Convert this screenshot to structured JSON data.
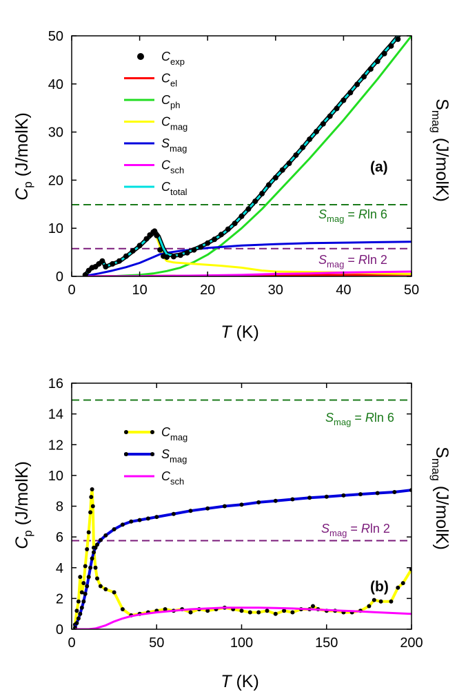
{
  "chart_data": [
    {
      "panel": "(a)",
      "type": "line",
      "xlabel": {
        "italic": "T",
        "rest": " (K)"
      },
      "ylabel_left": {
        "italic": "C",
        "sub": "p",
        "rest": " (J/molK)"
      },
      "ylabel_right": {
        "main": "S",
        "sub": "mag",
        "rest": " (J/molK)"
      },
      "xlim": [
        0,
        50
      ],
      "ylim": [
        0,
        50
      ],
      "xticks": [
        "0",
        "10",
        "20",
        "30",
        "40",
        "50"
      ],
      "yticks": [
        "0",
        "10",
        "20",
        "30",
        "40",
        "50"
      ],
      "hlines": [
        {
          "y": 14.9,
          "color": "#1a7a1a",
          "label_main": "S",
          "label_sub": "mag",
          "label_mid": " = ",
          "label_italic": "R",
          "label_tail": "ln 6"
        },
        {
          "y": 5.76,
          "color": "#7a1a7a",
          "label_main": "S",
          "label_sub": "mag",
          "label_mid": " = ",
          "label_italic": "R",
          "label_tail": "ln 2"
        }
      ],
      "legend": [
        {
          "sym": "C",
          "sub": "exp",
          "color": "#000000",
          "kind": "dot"
        },
        {
          "sym": "C",
          "sub": "el",
          "color": "#ff0000",
          "kind": "line"
        },
        {
          "sym": "C",
          "sub": "ph",
          "color": "#22dd22",
          "kind": "line"
        },
        {
          "sym": "C",
          "sub": "mag",
          "color": "#ffff00",
          "kind": "line"
        },
        {
          "sym": "S",
          "sub": "mag",
          "color": "#0000dd",
          "kind": "line"
        },
        {
          "sym": "C",
          "sub": "sch",
          "color": "#ff00ff",
          "kind": "line"
        },
        {
          "sym": "C",
          "sub": "total",
          "color": "#00e0e0",
          "kind": "line"
        }
      ],
      "series": [
        {
          "name": "C_exp",
          "style": "dots",
          "color": "#000000",
          "x": [
            2,
            2.5,
            3,
            3.5,
            4,
            4.5,
            5,
            6,
            7,
            8,
            9,
            10,
            11,
            11.5,
            12,
            12.2,
            12.5,
            13,
            13.5,
            14,
            15,
            16,
            17,
            18,
            19,
            20,
            21,
            22,
            23,
            24,
            25,
            26,
            27,
            28,
            29,
            30,
            31,
            32,
            33,
            34,
            35,
            36,
            37,
            38,
            39,
            40,
            41,
            42,
            43,
            44,
            45,
            46,
            47,
            48
          ],
          "y": [
            0.3,
            1.2,
            1.8,
            2.0,
            2.6,
            3.2,
            2.0,
            2.6,
            3.2,
            4.2,
            5.3,
            6.4,
            7.8,
            8.6,
            9.2,
            9.4,
            8.5,
            5.5,
            4.2,
            4.0,
            4.1,
            4.4,
            4.9,
            5.5,
            6.1,
            6.9,
            7.7,
            8.7,
            9.8,
            11.0,
            12.5,
            14.0,
            15.6,
            17.2,
            19.0,
            20.5,
            22.1,
            23.5,
            25.2,
            26.8,
            28.5,
            30.1,
            31.7,
            33.3,
            34.9,
            36.6,
            38.2,
            39.9,
            41.5,
            43.1,
            44.7,
            46.3,
            47.9,
            49.3
          ]
        },
        {
          "name": "C_el",
          "style": "line",
          "color": "#ff0000",
          "x": [
            2,
            10,
            20,
            30,
            40,
            50
          ],
          "y": [
            0.02,
            0.08,
            0.15,
            0.23,
            0.3,
            0.38
          ]
        },
        {
          "name": "C_ph",
          "style": "line",
          "color": "#22dd22",
          "x": [
            2,
            6,
            10,
            12,
            14,
            16,
            18,
            20,
            22,
            25,
            28,
            31,
            35,
            40,
            45,
            50
          ],
          "y": [
            0,
            0.05,
            0.3,
            0.6,
            1.1,
            1.8,
            3.0,
            4.5,
            6.5,
            10.0,
            14.0,
            18.5,
            24.5,
            32.5,
            41.0,
            50.0
          ]
        },
        {
          "name": "C_mag",
          "style": "line",
          "color": "#ffff00",
          "x": [
            2,
            2.5,
            3,
            3.5,
            4,
            4.5,
            5,
            6,
            7,
            8,
            9,
            10,
            11,
            12,
            12.2,
            12.8,
            13.5,
            14,
            15,
            16,
            17,
            18,
            20,
            22,
            25,
            28,
            30,
            35,
            40,
            45,
            50
          ],
          "y": [
            0.3,
            1.2,
            1.8,
            2.0,
            2.6,
            3.2,
            2.0,
            2.6,
            3.1,
            4.0,
            5.1,
            6.2,
            7.5,
            8.8,
            9.3,
            7.0,
            4.0,
            3.2,
            2.9,
            2.8,
            2.7,
            2.6,
            2.4,
            2.2,
            1.8,
            1.2,
            1.0,
            0.9,
            0.8,
            0.6,
            0.5
          ]
        },
        {
          "name": "S_mag",
          "style": "line",
          "color": "#0000dd",
          "x": [
            2,
            4,
            6,
            8,
            10,
            12,
            13,
            14,
            16,
            20,
            25,
            30,
            35,
            40,
            45,
            50
          ],
          "y": [
            0.1,
            0.6,
            1.2,
            1.9,
            2.8,
            4.0,
            4.6,
            4.9,
            5.3,
            5.9,
            6.4,
            6.7,
            6.9,
            7.0,
            7.1,
            7.2
          ]
        },
        {
          "name": "C_sch",
          "style": "line",
          "color": "#ff00ff",
          "x": [
            2,
            5,
            10,
            15,
            20,
            25,
            30,
            35,
            40,
            45,
            50
          ],
          "y": [
            0,
            0.02,
            0.05,
            0.1,
            0.2,
            0.3,
            0.5,
            0.6,
            0.8,
            0.9,
            1.0
          ]
        },
        {
          "name": "C_total",
          "style": "line",
          "color": "#00e0e0",
          "x": [
            2,
            2.5,
            3,
            3.5,
            4,
            4.5,
            5,
            6,
            7,
            8,
            9,
            10,
            11,
            12,
            12.2,
            12.8,
            13.5,
            14,
            15,
            16,
            17,
            18,
            19,
            20,
            21,
            22,
            23,
            24,
            25,
            26,
            27,
            28,
            29,
            30,
            31,
            32,
            33,
            34,
            35,
            36,
            37,
            38,
            39,
            40,
            41,
            42,
            43,
            44,
            45,
            46,
            47,
            48,
            48.8
          ],
          "y": [
            0.3,
            1.2,
            1.8,
            2.0,
            2.6,
            3.2,
            2.0,
            2.6,
            3.1,
            4.1,
            5.2,
            6.3,
            7.7,
            9.0,
            9.4,
            8.3,
            5.8,
            4.6,
            4.3,
            4.5,
            5.0,
            5.6,
            6.2,
            6.9,
            7.7,
            8.6,
            9.7,
            11.0,
            12.5,
            14.0,
            15.6,
            17.2,
            19.0,
            20.6,
            22.1,
            23.6,
            25.2,
            26.8,
            28.5,
            30.1,
            31.8,
            33.4,
            35.0,
            36.7,
            38.3,
            40.0,
            41.6,
            43.3,
            44.9,
            46.6,
            48.2,
            49.9,
            51
          ]
        }
      ]
    },
    {
      "panel": "(b)",
      "type": "line",
      "xlabel": {
        "italic": "T",
        "rest": " (K)"
      },
      "ylabel_left": {
        "italic": "C",
        "sub": "p",
        "rest": " (J/molK)"
      },
      "ylabel_right": {
        "main": "S",
        "sub": "mag",
        "rest": " (J/molK)"
      },
      "xlim": [
        0,
        200
      ],
      "ylim": [
        0,
        16
      ],
      "xticks": [
        "0",
        "50",
        "100",
        "150",
        "200"
      ],
      "yticks": [
        "0",
        "2",
        "4",
        "6",
        "8",
        "10",
        "12",
        "14",
        "16"
      ],
      "hlines": [
        {
          "y": 14.9,
          "color": "#1a7a1a",
          "label_main": "S",
          "label_sub": "mag",
          "label_mid": " = ",
          "label_italic": "R",
          "label_tail": "ln 6"
        },
        {
          "y": 5.76,
          "color": "#7a1a7a",
          "label_main": "S",
          "label_sub": "mag",
          "label_mid": " = ",
          "label_italic": "R",
          "label_tail": "ln 2"
        }
      ],
      "legend": [
        {
          "sym": "C",
          "sub": "mag",
          "color": "#ffff00",
          "kind": "linedot"
        },
        {
          "sym": "S",
          "sub": "mag",
          "color": "#0000dd",
          "kind": "linedot"
        },
        {
          "sym": "C",
          "sub": "sch",
          "color": "#ff00ff",
          "kind": "line"
        }
      ],
      "series": [
        {
          "name": "C_mag",
          "style": "linedot",
          "color": "#ffff00",
          "x": [
            2,
            3,
            4,
            5,
            6,
            7,
            8,
            9,
            10,
            11,
            11.5,
            12,
            12.5,
            13,
            14,
            15,
            17,
            20,
            25,
            30,
            35,
            40,
            45,
            50,
            55,
            60,
            65,
            70,
            75,
            80,
            85,
            90,
            95,
            100,
            105,
            110,
            115,
            120,
            125,
            130,
            135,
            140,
            142,
            145,
            150,
            155,
            160,
            165,
            170,
            175,
            178,
            182,
            188,
            192,
            195,
            200
          ],
          "y": [
            0.3,
            1.2,
            1.8,
            3.4,
            2.4,
            3.0,
            4.1,
            5.2,
            6.3,
            7.6,
            8.6,
            9.1,
            8.0,
            5.3,
            4.0,
            3.3,
            2.8,
            2.6,
            2.4,
            1.3,
            0.9,
            1.0,
            1.1,
            1.2,
            1.3,
            1.2,
            1.3,
            1.1,
            1.3,
            1.2,
            1.3,
            1.4,
            1.3,
            1.2,
            1.1,
            1.1,
            1.2,
            1.0,
            1.2,
            1.1,
            1.3,
            1.3,
            1.5,
            1.3,
            1.2,
            1.2,
            1.1,
            1.1,
            1.2,
            1.5,
            1.9,
            1.8,
            1.8,
            2.7,
            3.0,
            3.9
          ]
        },
        {
          "name": "S_mag",
          "style": "linedot",
          "color": "#0000dd",
          "x": [
            2,
            3,
            4,
            5,
            6,
            7,
            8,
            9,
            10,
            11,
            12,
            13,
            14,
            15,
            17,
            20,
            25,
            30,
            35,
            40,
            45,
            50,
            60,
            70,
            80,
            90,
            100,
            110,
            120,
            130,
            140,
            150,
            160,
            170,
            180,
            190,
            200
          ],
          "y": [
            0.1,
            0.4,
            0.7,
            1.0,
            1.4,
            1.8,
            2.3,
            2.8,
            3.4,
            4.0,
            4.6,
            5.0,
            5.3,
            5.5,
            5.8,
            6.1,
            6.5,
            6.8,
            7.0,
            7.1,
            7.2,
            7.3,
            7.5,
            7.7,
            7.85,
            8.0,
            8.1,
            8.25,
            8.35,
            8.45,
            8.55,
            8.62,
            8.7,
            8.78,
            8.85,
            8.92,
            9.05
          ]
        },
        {
          "name": "C_sch",
          "style": "line",
          "color": "#ff00ff",
          "x": [
            2,
            10,
            14,
            20,
            25,
            30,
            35,
            40,
            50,
            60,
            70,
            80,
            90,
            100,
            110,
            120,
            130,
            140,
            150,
            160,
            170,
            180,
            190,
            200
          ],
          "y": [
            0,
            0,
            0.05,
            0.25,
            0.5,
            0.7,
            0.85,
            0.95,
            1.1,
            1.2,
            1.3,
            1.35,
            1.4,
            1.4,
            1.4,
            1.38,
            1.35,
            1.3,
            1.25,
            1.2,
            1.15,
            1.1,
            1.05,
            1.0
          ]
        }
      ]
    }
  ]
}
